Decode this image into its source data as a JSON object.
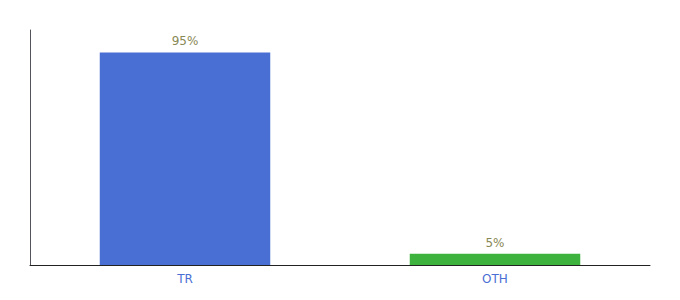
{
  "chart_data": {
    "type": "bar",
    "categories": [
      "TR",
      "OTH"
    ],
    "values": [
      95,
      5
    ],
    "value_labels": [
      "95%",
      "5%"
    ],
    "colors": [
      "#4a6fd4",
      "#3db33d"
    ],
    "ylim": [
      0,
      105
    ],
    "grid": false,
    "data_labels": true,
    "tick_labels": "x"
  }
}
